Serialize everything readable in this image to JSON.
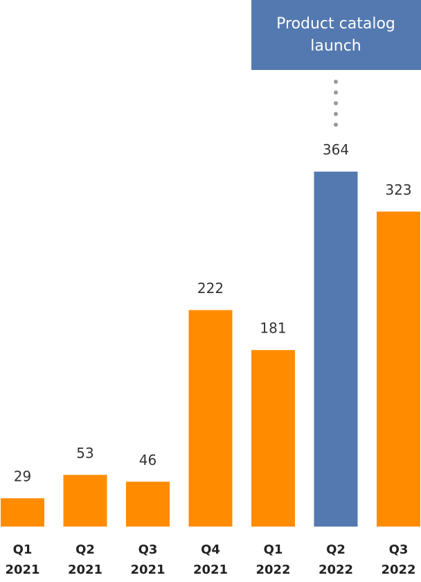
{
  "chart_data": {
    "type": "bar",
    "categories": [
      [
        "Q1",
        "2021"
      ],
      [
        "Q2",
        "2021"
      ],
      [
        "Q3",
        "2021"
      ],
      [
        "Q4",
        "2021"
      ],
      [
        "Q1",
        "2022"
      ],
      [
        "Q2",
        "2022"
      ],
      [
        "Q3",
        "2022"
      ]
    ],
    "values": [
      29,
      53,
      46,
      222,
      181,
      364,
      323
    ],
    "colors": [
      "#ff8c00",
      "#ff8c00",
      "#ff8c00",
      "#ff8c00",
      "#ff8c00",
      "#5479b0",
      "#ff8c00"
    ],
    "ylim": [
      0,
      400
    ],
    "annotation": {
      "text": [
        "Product catalog",
        "launch"
      ],
      "category_index": 5,
      "color": "#5479b0"
    }
  }
}
